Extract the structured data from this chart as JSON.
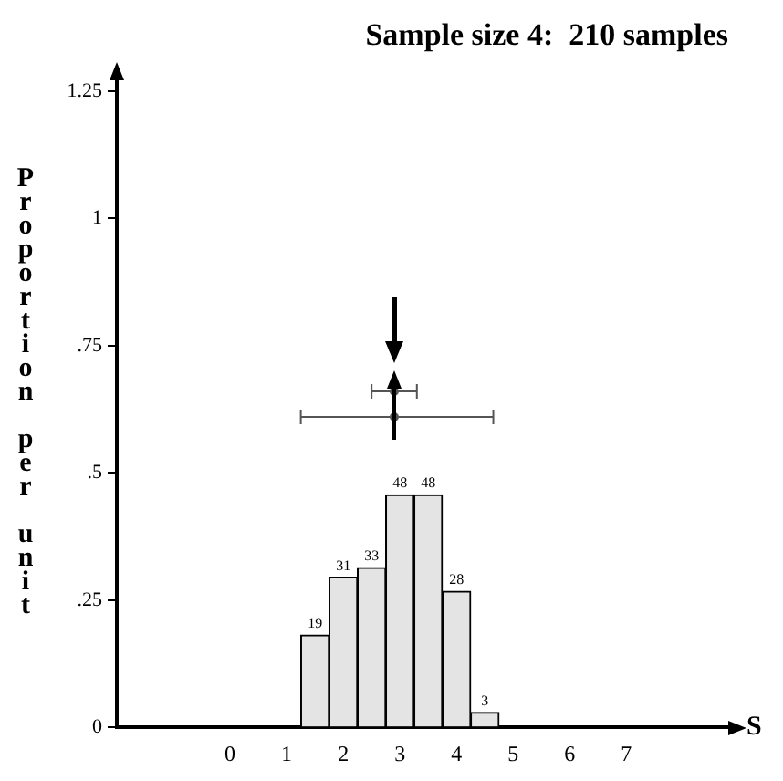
{
  "chart_data": {
    "type": "histogram",
    "title": "Sample size 4:  210 samples",
    "xlabel": "S",
    "ylabel": "Proportion per unit",
    "bins": [
      1.25,
      1.75,
      2.25,
      2.75,
      3.25,
      3.75,
      4.25,
      4.75
    ],
    "values": [
      0.181,
      0.295,
      0.314,
      0.457,
      0.457,
      0.267,
      0.029
    ],
    "annotations": [
      {
        "text": "19",
        "x": 1.5,
        "y": 0.181
      },
      {
        "text": "31",
        "x": 2,
        "y": 0.295
      },
      {
        "text": "33",
        "x": 2.5,
        "y": 0.314
      },
      {
        "text": "48",
        "x": 3,
        "y": 0.457
      },
      {
        "text": "48",
        "x": 3.5,
        "y": 0.457
      },
      {
        "text": "28",
        "x": 4,
        "y": 0.267
      },
      {
        "text": "3",
        "x": 4.5,
        "y": 0.029
      }
    ],
    "color": "#e4e4e4",
    "series": [
      {
        "type": "scatter",
        "marker": "circle",
        "color": "#555555",
        "x": [
          2.9,
          2.9
        ],
        "values": [
          0.61,
          0.66
        ],
        "xerrors": [
          [
            1.25,
            4.65
          ],
          [
            2.5,
            3.3
          ]
        ]
      }
    ],
    "xlim": [
      -2,
      8.8
    ],
    "xticks": [
      0,
      1,
      2,
      3,
      4,
      5,
      6,
      7
    ],
    "ylim": [
      0,
      1.27
    ],
    "yticks": [
      0,
      {
        "value": 0.25,
        "label": ".25"
      },
      {
        "value": 0.5,
        "label": ".5"
      },
      {
        "value": 0.75,
        "label": ".75"
      },
      1,
      1.25
    ],
    "grid": false,
    "legend": false
  }
}
